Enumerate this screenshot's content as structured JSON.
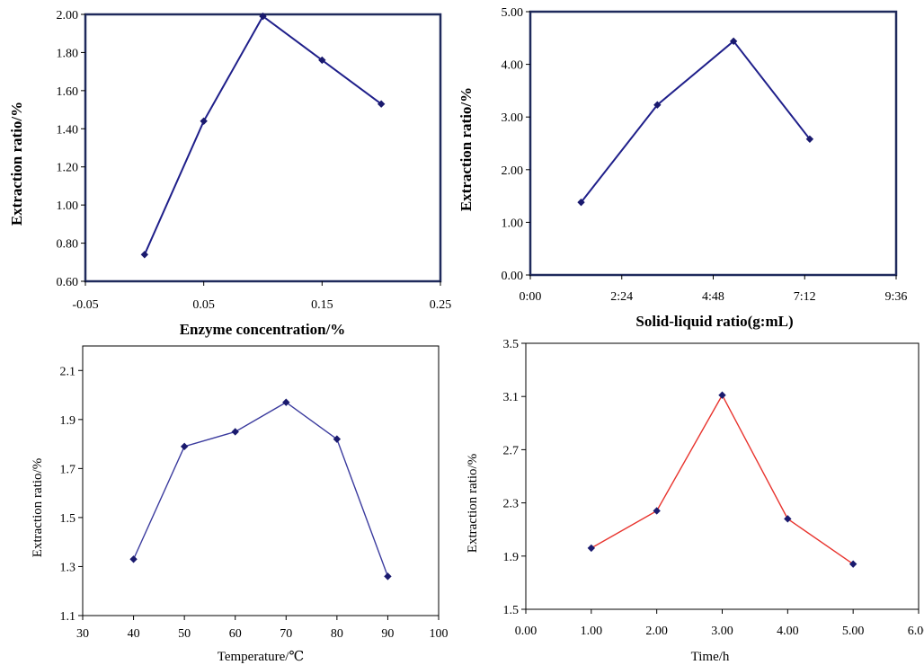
{
  "chart_data": [
    {
      "type": "line",
      "xlabel": "Enzyme concentration/%",
      "ylabel": "Extraction ratio/%",
      "xlim": [
        -0.05,
        0.25
      ],
      "ylim": [
        0.6,
        2.0
      ],
      "xticks": [
        "-0.05",
        "0.05",
        "0.15",
        "0.25"
      ],
      "yticks": [
        "0.60",
        "0.80",
        "1.00",
        "1.20",
        "1.40",
        "1.60",
        "1.80",
        "2.00"
      ],
      "series": [
        {
          "x": [
            0.0,
            0.05,
            0.1,
            0.15,
            0.2
          ],
          "y": [
            0.74,
            1.44,
            1.99,
            1.76,
            1.53
          ]
        }
      ],
      "line_color": "#1f1f8a",
      "marker_color": "#1a1a6e"
    },
    {
      "type": "line",
      "xlabel": "Solid-liquid ratio(g:mL)",
      "ylabel": "Extraction ratio/%",
      "xlim": [
        0,
        576
      ],
      "ylim": [
        0,
        5
      ],
      "xticks": [
        "0:00",
        "2:24",
        "4:48",
        "7:12",
        "9:36"
      ],
      "yticks": [
        "0.00",
        "1.00",
        "2.00",
        "3.00",
        "4.00",
        "5.00"
      ],
      "series": [
        {
          "x": [
            "1:20",
            "3:20",
            "5:20",
            "7:20"
          ],
          "y": [
            1.38,
            3.23,
            4.44,
            2.58
          ]
        }
      ],
      "line_color": "#1f1f8a",
      "marker_color": "#1a1a6e"
    },
    {
      "type": "line",
      "xlabel": "Temperature/℃",
      "ylabel": "Extraction ratio/%",
      "xlim": [
        30,
        100
      ],
      "ylim": [
        1.1,
        2.2
      ],
      "xticks": [
        "30",
        "40",
        "50",
        "60",
        "70",
        "80",
        "90",
        "100"
      ],
      "yticks": [
        "1.1",
        "1.3",
        "1.5",
        "1.7",
        "1.9",
        "2.1"
      ],
      "series": [
        {
          "x": [
            40,
            50,
            60,
            70,
            80,
            90
          ],
          "y": [
            1.33,
            1.79,
            1.85,
            1.97,
            1.82,
            1.26
          ]
        }
      ],
      "line_color": "#3b3b9e",
      "marker_color": "#1a1a6e"
    },
    {
      "type": "line",
      "xlabel": "Time/h",
      "ylabel": "Extraction ratio/%",
      "xlim": [
        0,
        6
      ],
      "ylim": [
        1.5,
        3.5
      ],
      "xticks": [
        "0.00",
        "1.00",
        "2.00",
        "3.00",
        "4.00",
        "5.00",
        "6.00"
      ],
      "yticks": [
        "1.5",
        "1.9",
        "2.3",
        "2.7",
        "3.1",
        "3.5"
      ],
      "series": [
        {
          "x": [
            1,
            2,
            3,
            4,
            5
          ],
          "y": [
            1.96,
            2.24,
            3.11,
            2.18,
            1.84
          ]
        }
      ],
      "line_color": "#e8342e",
      "marker_color": "#1a1a6e"
    }
  ]
}
